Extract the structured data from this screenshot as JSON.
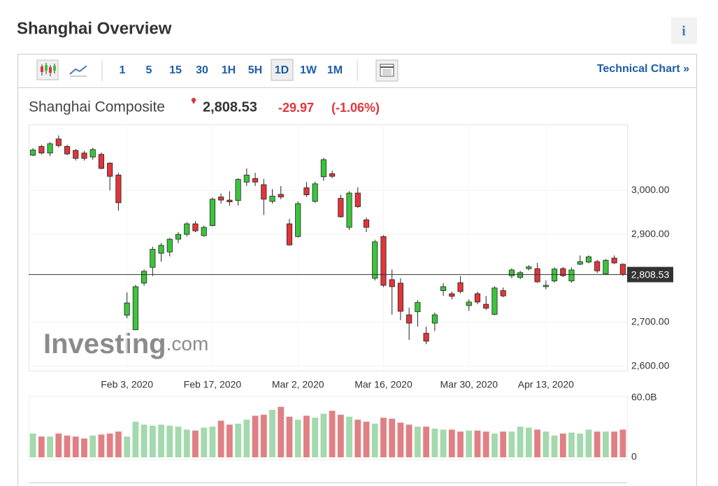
{
  "header": {
    "title": "Shanghai Overview",
    "info": "i"
  },
  "toolbar": {
    "intervals": [
      "1",
      "5",
      "15",
      "30",
      "1H",
      "5H",
      "1D",
      "1W",
      "1M"
    ],
    "active": "1D",
    "link": "Technical Chart »"
  },
  "quote": {
    "name": "Shanghai Composite",
    "change": "-29.97",
    "change_percent": "(-1.06%)"
  },
  "chart_data": {
    "type": "candlestick",
    "watermark": [
      "Investing",
      ".com"
    ],
    "categories": [
      null,
      null,
      null,
      null,
      null,
      null,
      null,
      null,
      null,
      null,
      null,
      "Feb 3, 2020",
      null,
      null,
      null,
      null,
      null,
      null,
      null,
      null,
      null,
      "Feb 17, 2020",
      null,
      null,
      null,
      null,
      null,
      null,
      null,
      null,
      null,
      "Mar 2, 2020",
      null,
      null,
      null,
      null,
      null,
      null,
      null,
      null,
      null,
      "Mar 16, 2020",
      null,
      null,
      null,
      null,
      null,
      null,
      null,
      null,
      null,
      "Mar 30, 2020",
      null,
      null,
      null,
      null,
      null,
      null,
      null,
      null,
      "Apr 13, 2020",
      null,
      null,
      null,
      null,
      null,
      null,
      null,
      null,
      null
    ],
    "open": [
      3080,
      3100,
      3085,
      3117,
      3100,
      3091,
      3085,
      3076,
      3082,
      3062,
      3035,
      2716,
      2683,
      2789,
      2825,
      2857,
      2860,
      2889,
      2900,
      2924,
      2897,
      2920,
      2985,
      2978,
      2977,
      3019,
      3027,
      3013,
      2975,
      2991,
      2924,
      2895,
      3006,
      2975,
      3031,
      3038,
      2982,
      2916,
      2994,
      2933,
      2800,
      2895,
      2797,
      2789,
      2717,
      2724,
      2675,
      2698,
      2772,
      2765,
      2790,
      2738,
      2765,
      2741,
      2718,
      2772,
      2806,
      2802,
      2822,
      2822,
      2781,
      2794,
      2822,
      2794,
      2832,
      2837,
      2838,
      2810,
      2846,
      2832
    ],
    "high": [
      3096,
      3104,
      3110,
      3125,
      3104,
      3094,
      3090,
      3097,
      3086,
      3064,
      3040,
      2768,
      2785,
      2820,
      2872,
      2880,
      2892,
      2905,
      2928,
      2930,
      2920,
      2984,
      2993,
      2998,
      3028,
      3050,
      3040,
      3026,
      3003,
      3010,
      2935,
      2975,
      3019,
      3020,
      3074,
      3045,
      2990,
      2998,
      3007,
      2938,
      2888,
      2898,
      2820,
      2800,
      2733,
      2750,
      2690,
      2722,
      2789,
      2770,
      2805,
      2752,
      2770,
      2760,
      2782,
      2779,
      2823,
      2817,
      2830,
      2835,
      2795,
      2825,
      2826,
      2825,
      2852,
      2852,
      2842,
      2844,
      2852,
      2834
    ],
    "low": [
      3078,
      3082,
      3078,
      3098,
      3080,
      3068,
      3068,
      3070,
      3048,
      3000,
      2954,
      2709,
      2682,
      2783,
      2805,
      2838,
      2850,
      2880,
      2895,
      2905,
      2895,
      2918,
      2970,
      2965,
      2966,
      3010,
      3010,
      2944,
      2970,
      2980,
      2874,
      2893,
      2985,
      2972,
      3022,
      3028,
      2938,
      2910,
      2960,
      2905,
      2795,
      2780,
      2717,
      2705,
      2660,
      2690,
      2650,
      2680,
      2760,
      2752,
      2766,
      2726,
      2741,
      2728,
      2716,
      2757,
      2800,
      2798,
      2818,
      2790,
      2775,
      2790,
      2803,
      2790,
      2830,
      2834,
      2812,
      2808,
      2832,
      2805
    ],
    "close": [
      3092,
      3085,
      3106,
      3102,
      3083,
      3073,
      3073,
      3093,
      3050,
      3032,
      2972,
      2744,
      2781,
      2816,
      2866,
      2875,
      2889,
      2900,
      2924,
      2908,
      2916,
      2980,
      2978,
      2974,
      3025,
      3035,
      3019,
      2980,
      2987,
      2985,
      2876,
      2970,
      2990,
      3015,
      3070,
      3032,
      2940,
      2994,
      2963,
      2916,
      2883,
      2784,
      2781,
      2725,
      2698,
      2745,
      2657,
      2717,
      2781,
      2759,
      2770,
      2746,
      2746,
      2732,
      2778,
      2760,
      2819,
      2813,
      2826,
      2792,
      2784,
      2821,
      2806,
      2819,
      2838,
      2849,
      2817,
      2841,
      2835,
      2808.53
    ],
    "volume": [
      24,
      21,
      21,
      24,
      22,
      21,
      19,
      22,
      23,
      24,
      26,
      21,
      36,
      33,
      32,
      33,
      32,
      31,
      28,
      27,
      30,
      31,
      37,
      33,
      34,
      38,
      42,
      43,
      48,
      51,
      41,
      38,
      42,
      40,
      44,
      47,
      43,
      41,
      38,
      36,
      34,
      40,
      39,
      35,
      33,
      31,
      31,
      29,
      28,
      28,
      26,
      27,
      27,
      26,
      24,
      26,
      26,
      31,
      30,
      28,
      26,
      22,
      24,
      25,
      24,
      28,
      26,
      26,
      26,
      28
    ],
    "last_price": {
      "value": 2808.53,
      "label": "2,808.53"
    },
    "ylim": [
      2590,
      3150
    ],
    "yticks": [
      {
        "value": 2600,
        "label": "2,600.00"
      },
      {
        "value": 2700,
        "label": "2,700.00"
      },
      {
        "value": 2900,
        "label": "2,900.00"
      },
      {
        "value": 3000,
        "label": "3,000.00"
      }
    ],
    "vlim": [
      0,
      60
    ],
    "vticks": [
      0,
      {
        "value": 60,
        "label": "60.0B"
      }
    ],
    "up_color": "#3cc43c",
    "down_color": "#e0353b",
    "volume_up_color": "#a3d9ad",
    "volume_down_color": "#e08084",
    "grid": true
  }
}
